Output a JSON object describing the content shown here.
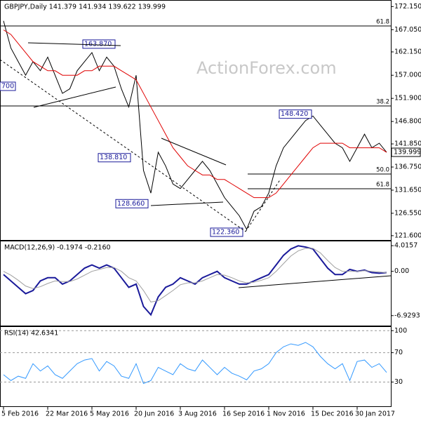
{
  "chart_data": [
    {
      "type": "line",
      "title": "GBPJPY,Daily  141.379 141.934 139.622 139.999",
      "watermark": "ActionForex.com",
      "ylim": [
        120.5,
        173.6
      ],
      "yticks": [
        {
          "value": 172.15,
          "label": "172.150"
        },
        {
          "value": 167.05,
          "label": "167.050"
        },
        {
          "value": 162.15,
          "label": "162.150"
        },
        {
          "value": 157.0,
          "label": "157.000"
        },
        {
          "value": 151.9,
          "label": "151.900"
        },
        {
          "value": 146.8,
          "label": "146.800"
        },
        {
          "value": 141.85,
          "label": "141.850"
        },
        {
          "value": 136.75,
          "label": "136.750"
        },
        {
          "value": 131.65,
          "label": "131.650"
        },
        {
          "value": 126.55,
          "label": "126.550"
        },
        {
          "value": 121.6,
          "label": "121.600"
        }
      ],
      "series": [
        {
          "color": "#000000",
          "values": [
            169,
            163,
            160,
            157,
            160,
            158,
            161,
            157,
            153,
            154,
            158,
            160,
            162,
            158,
            161,
            159,
            154,
            150,
            157,
            136,
            131,
            140,
            137,
            133,
            132,
            134,
            136,
            138,
            136,
            133,
            130,
            128,
            126,
            123,
            127,
            128,
            131,
            137,
            141,
            143,
            145,
            147,
            148,
            146,
            144,
            142,
            141,
            138,
            141,
            144,
            141,
            142,
            140
          ]
        },
        {
          "color": "#e00000",
          "values": [
            167,
            166,
            164,
            162,
            160,
            159,
            158,
            158,
            157,
            157,
            157,
            158,
            158,
            159,
            159,
            159,
            158,
            157,
            156,
            153,
            150,
            147,
            144,
            141,
            139,
            137,
            136,
            135,
            135,
            134,
            134,
            133,
            132,
            131,
            130,
            130,
            130,
            131,
            133,
            135,
            137,
            139,
            141,
            142,
            142,
            142,
            142,
            141,
            141,
            141,
            141,
            141,
            140
          ]
        }
      ],
      "levels": [
        {
          "label": "61.8",
          "value": 167.87
        },
        {
          "label": "38.2",
          "value": 150.22
        },
        {
          "label": "50.0",
          "value": 135.21
        },
        {
          "label": "61.8",
          "value": 131.96
        }
      ],
      "annotations": [
        {
          "label": "163.870",
          "value": 163.87
        },
        {
          "label": "148.420",
          "value": 148.42
        },
        {
          "label": "138.810",
          "value": 138.81
        },
        {
          "label": "128.660",
          "value": 128.66
        },
        {
          "label": "122.360",
          "value": 122.36
        },
        {
          "label": "700"
        }
      ],
      "last_price": {
        "value": 139.999,
        "label": "139.999"
      }
    },
    {
      "type": "line",
      "title": "MACD(12,26,9) -0.1974 -0.2160",
      "ylim": [
        -8.6,
        4.8
      ],
      "yticks": [
        4.0157,
        {
          "value": 0,
          "label": "0.00"
        },
        -6.9293
      ],
      "series": [
        {
          "color": "#1a1a9a",
          "values": [
            -0.5,
            -1.5,
            -2.5,
            -3.5,
            -3,
            -1.5,
            -1,
            -1,
            -2,
            -1.5,
            -0.5,
            0.5,
            1,
            0.5,
            1,
            0.5,
            -1,
            -2.5,
            -2,
            -5.5,
            -6.8,
            -4,
            -2.5,
            -2,
            -1,
            -1.5,
            -2,
            -1,
            -0.5,
            0,
            -1,
            -1.5,
            -2,
            -2,
            -1.5,
            -1,
            -0.5,
            1,
            2.5,
            3.5,
            4,
            3.8,
            3.5,
            2,
            0.5,
            -0.5,
            -0.5,
            0.3,
            0,
            0.2,
            -0.2,
            -0.3,
            -0.2
          ]
        },
        {
          "color": "#a0a0a0",
          "values": [
            0,
            -0.6,
            -1.4,
            -2.3,
            -2.7,
            -2.4,
            -1.9,
            -1.5,
            -1.6,
            -1.6,
            -1.2,
            -0.6,
            0,
            0.3,
            0.6,
            0.6,
            0,
            -1,
            -1.5,
            -3,
            -4.8,
            -4.6,
            -3.8,
            -3,
            -2.1,
            -1.8,
            -1.8,
            -1.5,
            -1,
            -0.5,
            -0.6,
            -1,
            -1.5,
            -1.8,
            -1.7,
            -1.4,
            -1,
            0,
            1.2,
            2.4,
            3.2,
            3.6,
            3.6,
            2.9,
            1.7,
            0.6,
            0,
            0,
            0,
            0.1,
            0,
            -0.1,
            -0.22
          ]
        }
      ]
    },
    {
      "type": "line",
      "title": "RSI(14) 42.6341",
      "ylim": [
        -4,
        106
      ],
      "yticks": [
        100,
        70,
        30
      ],
      "grid": true,
      "categories": [
        "5 Feb 2016",
        null,
        null,
        null,
        null,
        null,
        "22 Mar 2016",
        null,
        null,
        null,
        null,
        null,
        "5 May 2016",
        null,
        null,
        null,
        null,
        null,
        "20 Jun 2016",
        null,
        null,
        null,
        null,
        null,
        "3 Aug 2016",
        null,
        null,
        null,
        null,
        null,
        "16 Sep 2016",
        null,
        null,
        null,
        null,
        null,
        "1 Nov 2016",
        null,
        null,
        null,
        null,
        null,
        "15 Dec 2016",
        null,
        null,
        null,
        null,
        null,
        "30 Jan 2017",
        null,
        null,
        null,
        null
      ],
      "series": [
        {
          "color": "#3399ff",
          "values": [
            40,
            32,
            38,
            35,
            55,
            45,
            52,
            40,
            35,
            45,
            55,
            60,
            62,
            45,
            58,
            52,
            38,
            35,
            55,
            28,
            32,
            50,
            45,
            40,
            55,
            48,
            45,
            60,
            50,
            40,
            50,
            42,
            38,
            33,
            45,
            48,
            55,
            70,
            78,
            82,
            80,
            84,
            78,
            65,
            55,
            48,
            55,
            32,
            58,
            60,
            50,
            55,
            43
          ]
        }
      ]
    }
  ]
}
